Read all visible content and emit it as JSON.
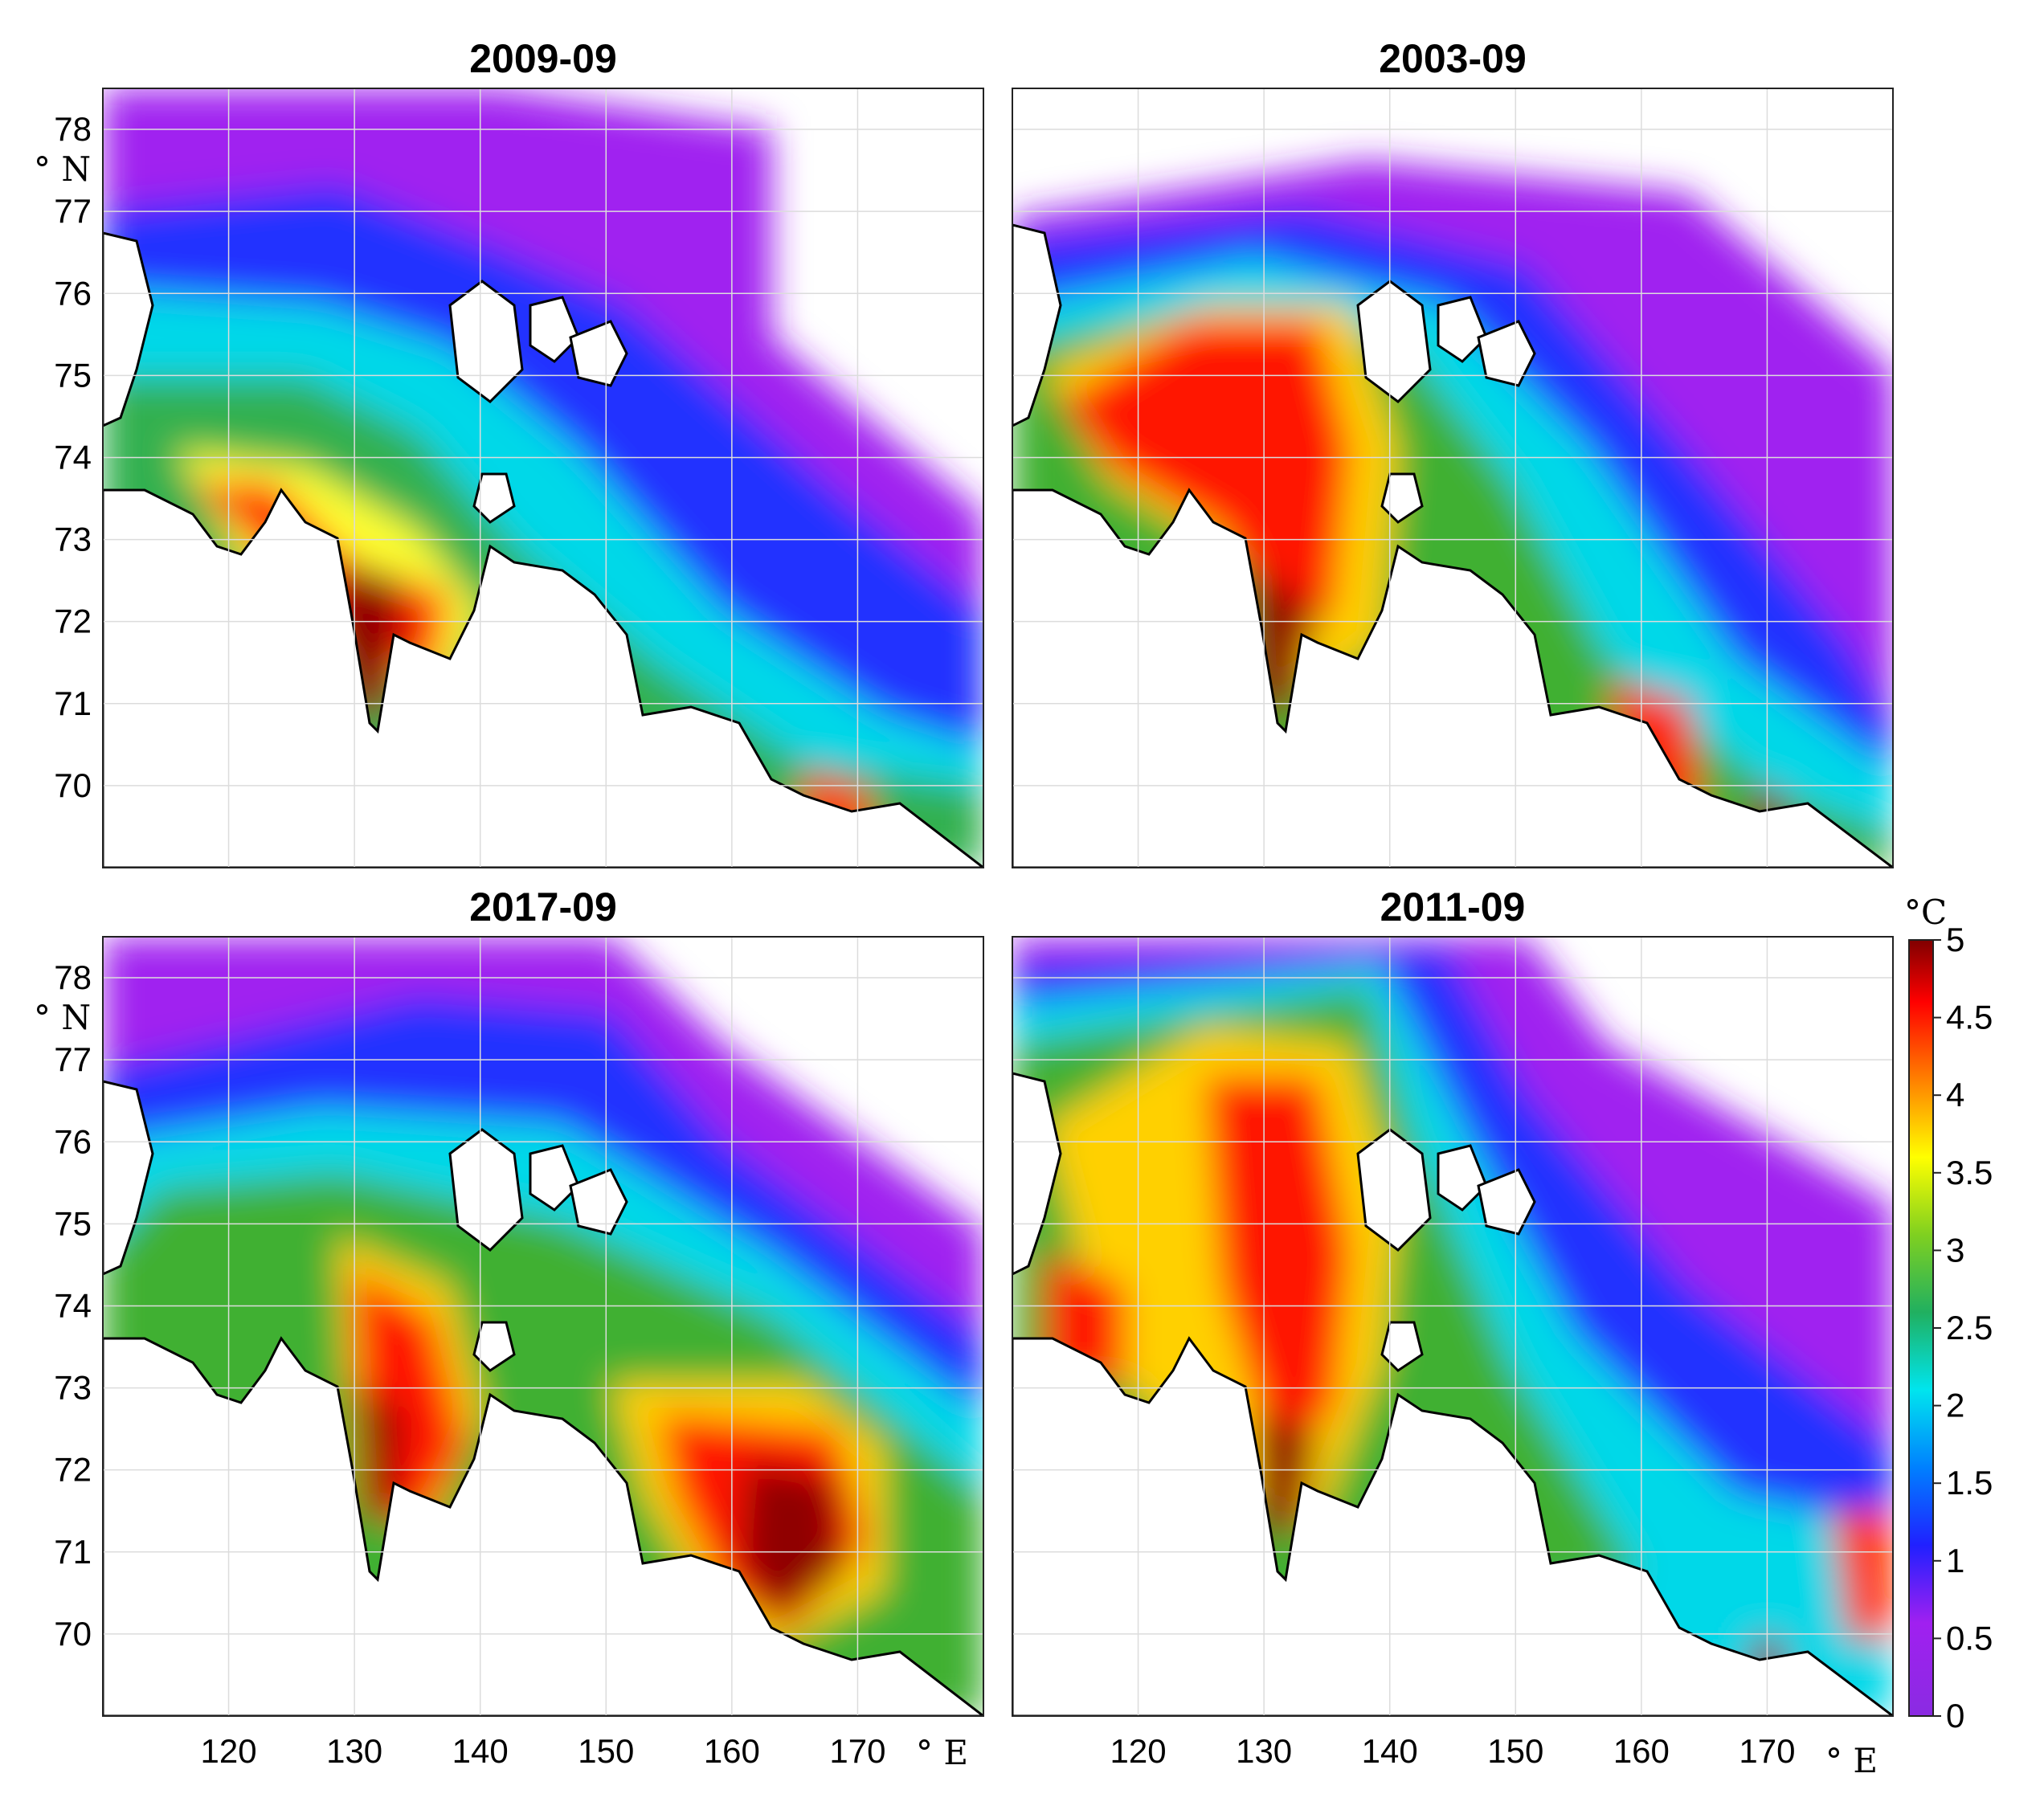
{
  "panels": [
    {
      "title": "2009-09"
    },
    {
      "title": "2003-09"
    },
    {
      "title": "2017-09"
    },
    {
      "title": "2011-09"
    }
  ],
  "axes": {
    "lon_ticks": [
      "120",
      "130",
      "140",
      "150",
      "160",
      "170"
    ],
    "lon_values": [
      120,
      130,
      140,
      150,
      160,
      170
    ],
    "lon_range": [
      110,
      180
    ],
    "lat_ticks": [
      "78",
      "77",
      "76",
      "75",
      "74",
      "73",
      "72",
      "71",
      "70"
    ],
    "lat_values": [
      78,
      77,
      76,
      75,
      74,
      73,
      72,
      71,
      70
    ],
    "lat_range": [
      69,
      78.5
    ],
    "lon_unit": "° E",
    "lat_unit": "° N",
    "grid": true
  },
  "colorbar": {
    "unit": "°C",
    "ticks": [
      "5",
      "4.5",
      "4",
      "3.5",
      "3",
      "2.5",
      "2",
      "1.5",
      "1",
      "0.5",
      "0"
    ],
    "values": [
      5,
      4.5,
      4,
      3.5,
      3,
      2.5,
      2,
      1.5,
      1,
      0.5,
      0
    ],
    "range": [
      0,
      5
    ],
    "colors": [
      "#7f00ff",
      "#a21ee0",
      "#0000ff",
      "#00ffff",
      "#00c864",
      "#32cd32",
      "#ffff00",
      "#ff8c00",
      "#ff0000",
      "#8b0000"
    ]
  }
}
